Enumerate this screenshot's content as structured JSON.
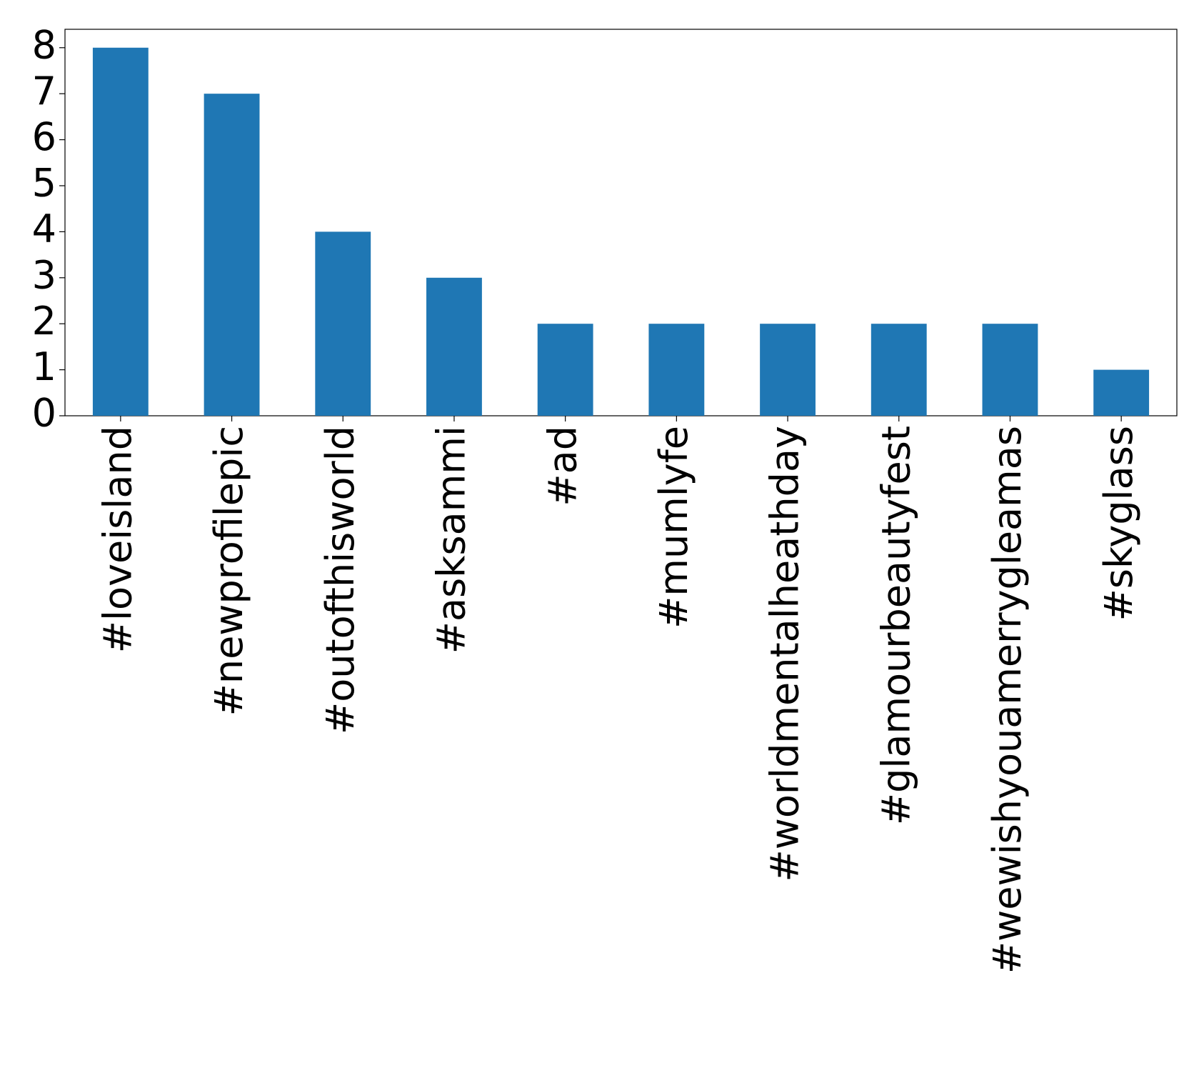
{
  "chart_data": {
    "type": "bar",
    "categories": [
      "#loveisland",
      "#newprofilepic",
      "#outofthisworld",
      "#asksammi",
      "#ad",
      "#mumlyfe",
      "#worldmentalheathday",
      "#glamourbeautyfest",
      "#wewishyouamerrygleamas",
      "#skyglass"
    ],
    "values": [
      8,
      7,
      4,
      3,
      2,
      2,
      2,
      2,
      2,
      1
    ],
    "color": "#1f77b4",
    "ylim": [
      0,
      8.4
    ],
    "yticks": [
      0,
      1,
      2,
      3,
      4,
      5,
      6,
      7,
      8
    ],
    "grid": false
  }
}
